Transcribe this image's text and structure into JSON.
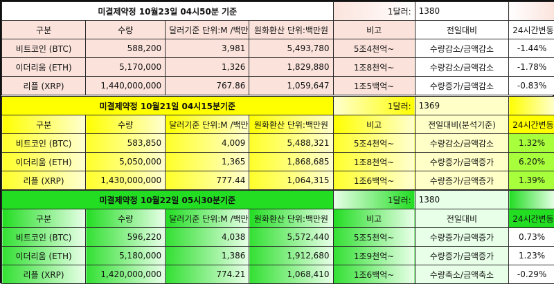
{
  "blocks": [
    {
      "title": "미결제약정 10월23일  04시50분 기준",
      "rate_label": "1달러:",
      "rate_value": "1380",
      "headers": {
        "category": "구분",
        "qty": "수량",
        "usd": "달러기준 단위:M /백만",
        "krw": "원화환산  단위:백만원",
        "note": "비고",
        "prev": "전일대비",
        "change24": "24시간변동"
      },
      "rows": [
        {
          "name": "비트코인 (BTC)",
          "qty": "588,200",
          "usd": "3,981",
          "krw": "5,493,780",
          "note": "5조4천억~",
          "prev": "수량감소/금액감소",
          "change24": "-1.44%"
        },
        {
          "name": "이더리움 (ETH)",
          "qty": "5,170,000",
          "usd": "1,326",
          "krw": "1,829,880",
          "note": "1조8천억~",
          "prev": "수량감소/금액감소",
          "change24": "-1.78%"
        },
        {
          "name": "리플 (XRP)",
          "qty": "1,440,000,000",
          "usd": "767.86",
          "krw": "1,059,647",
          "note": "1조5백억~",
          "prev": "수량증가/금액감소",
          "change24": "-0.83%"
        }
      ],
      "colors": {
        "title_bg": "#ffffff",
        "header_bg": "#fbe3dc",
        "cell_bg": "#fbe3dc",
        "right_bg": "#ffffff",
        "change_head_bg": "#ffffff",
        "change_bg": "#ffffff",
        "grad_to": "#fbe3dc"
      }
    },
    {
      "title": "미결제약정 10월21일  04시15분기준",
      "rate_label": "1달러:",
      "rate_value": "1369",
      "headers": {
        "category": "구분",
        "qty": "수량",
        "usd": "달러기준 단위:M /백만",
        "krw": "원화환산  단위:백만원",
        "note": "비고",
        "prev": "전일대비(분석기준)",
        "change24": "24시간변동"
      },
      "rows": [
        {
          "name": "비트코인 (BTC)",
          "qty": "583,850",
          "usd": "4,009",
          "krw": "5,488,321",
          "note": "5조4천억~",
          "prev": "수량감소/금액감소",
          "change24": "1.32%"
        },
        {
          "name": "이더리움 (ETH)",
          "qty": "5,050,000",
          "usd": "1,365",
          "krw": "1,868,685",
          "note": "1조8천억~",
          "prev": "수량증가/금액증가",
          "change24": "6.20%"
        },
        {
          "name": "리플 (XRP)",
          "qty": "1,430,000,000",
          "usd": "777.44",
          "krw": "1,064,315",
          "note": "1조6백억~",
          "prev": "수량증가/금액증가",
          "change24": "1.39%"
        }
      ],
      "colors": {
        "title_bg": "#ffff00",
        "header_bg": "#ffff00",
        "cell_bg": "#ffff2a",
        "right_bg": "#ffffc8",
        "change_head_bg": "#ffff00",
        "change_bg": "#a8ff3c",
        "grad_to": "#ffffd0"
      }
    },
    {
      "title": "미결제약정 10월22일  05시30분기준",
      "rate_label": "1달러:",
      "rate_value": "1380",
      "headers": {
        "category": "구분",
        "qty": "수량",
        "usd": "달러기준 단위:M /백만",
        "krw": "원화환산  단위:백만원",
        "note": "비고",
        "prev": "전일대비",
        "change24": "24시간변동"
      },
      "rows": [
        {
          "name": "비트코인 (BTC)",
          "qty": "596,220",
          "usd": "4,038",
          "krw": "5,572,440",
          "note": "5조5천억~",
          "prev": "수량증가/금액증가",
          "change24": "0.73%"
        },
        {
          "name": "이더리움 (ETH)",
          "qty": "5,180,000",
          "usd": "1,386",
          "krw": "1,912,680",
          "note": "1조9천억~",
          "prev": "수량증가/금액증가",
          "change24": "1.23%"
        },
        {
          "name": "리플 (XRP)",
          "qty": "1,420,000,000",
          "usd": "774.21",
          "krw": "1,068,410",
          "note": "1조6백억~",
          "prev": "수량축소/금액축소",
          "change24": "-0.29%"
        }
      ],
      "colors": {
        "title_bg": "#22dd22",
        "header_bg": "#22dd22",
        "cell_bg": "#33e033",
        "right_bg": "#e8ffe8",
        "change_head_bg": "#22dd22",
        "change_bg": "#ffffff",
        "grad_to": "#e8ffe8"
      }
    }
  ]
}
